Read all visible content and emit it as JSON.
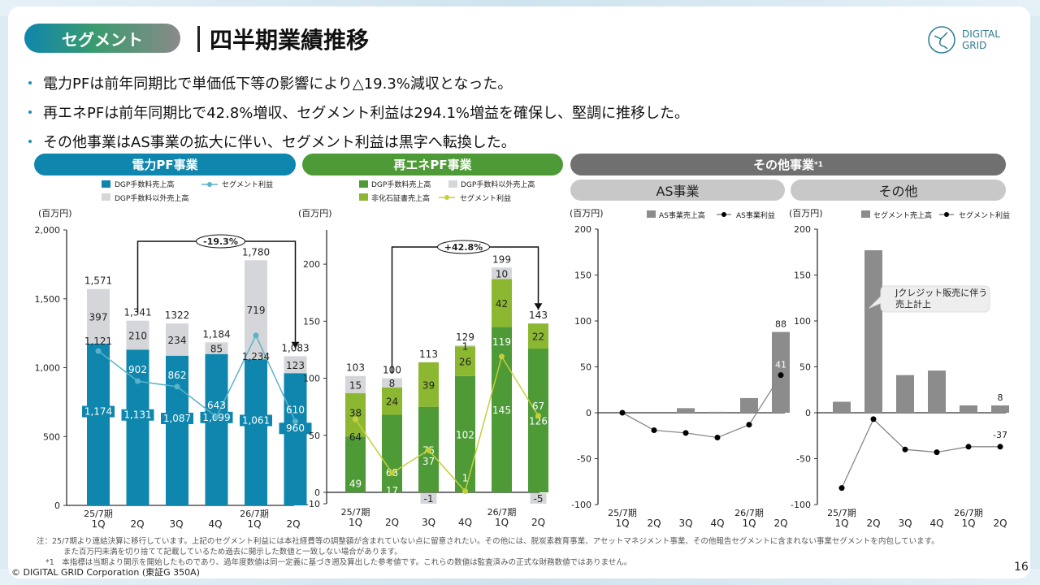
{
  "header": {
    "section_pill": "セグメント",
    "title": "四半期業績推移",
    "logo_line1": "DIGITAL",
    "logo_line2": "GRID"
  },
  "bullets": [
    "電力PFは前年同期比で単価低下等の影響により△19.3%減収となった。",
    "再エネPFは前年同期比で42.8%増収、セグメント利益は294.1%増益を確保し、堅調に推移した。",
    "その他事業はAS事業の拡大に伴い、セグメント利益は黒字へ転換した。"
  ],
  "colors": {
    "power_blue": "#0f86ad",
    "power_gray": "#d5d6d9",
    "power_line": "#5ab3c8",
    "renew_dark": "#4e9a37",
    "renew_light": "#8cb831",
    "renew_line": "#c5cf3c",
    "other_bar": "#8c8c8c",
    "other_hdr": "#707070"
  },
  "segments": {
    "power": "電力PF事業",
    "renew": "再エネPF事業",
    "other": "その他事業",
    "other_sup": "*1",
    "as": "AS事業",
    "misc": "その他"
  },
  "chart_data": [
    {
      "type": "bar",
      "title": "電力PF事業",
      "unit": "(百万円)",
      "categories": [
        "1Q",
        "2Q",
        "3Q",
        "4Q",
        "1Q",
        "2Q"
      ],
      "period_labels": [
        "25/7期",
        "",
        "",
        "",
        "26/7期",
        ""
      ],
      "ylim": [
        0,
        2000
      ],
      "yticks": [
        0,
        500,
        1000,
        1500,
        2000
      ],
      "ytick_labels": [
        "0",
        "500",
        "1,000",
        "1,500",
        "2,000"
      ],
      "legend": [
        "DGP手数料売上高",
        "DGP手数料以外売上高",
        "セグメント利益"
      ],
      "series": [
        {
          "name": "DGP手数料売上高",
          "values": [
            1174,
            1131,
            1087,
            1099,
            1061,
            960
          ],
          "labels": [
            "1,174",
            "1,131",
            "1,087",
            "1,099",
            "1,061",
            "960"
          ]
        },
        {
          "name": "DGP手数料以外売上高",
          "values": [
            397,
            210,
            234,
            85,
            719,
            123
          ],
          "labels": [
            "397",
            "210",
            "234",
            "85",
            "719",
            "123"
          ]
        },
        {
          "name": "セグメント利益",
          "values": [
            1121,
            902,
            862,
            643,
            1234,
            610
          ],
          "labels": [
            "1,121",
            "902",
            "862",
            "643",
            "1,234",
            "610"
          ]
        }
      ],
      "totals": [
        "1,571",
        "1,341",
        "1322",
        "1,184",
        "1,780",
        "1,083"
      ],
      "annotation": {
        "text": "-19.3%",
        "from": 1,
        "to": 5
      }
    },
    {
      "type": "bar",
      "title": "再エネPF事業",
      "unit": "(百万円)",
      "categories": [
        "1Q",
        "2Q",
        "3Q",
        "4Q",
        "1Q",
        "2Q"
      ],
      "period_labels": [
        "25/7期",
        "",
        "",
        "",
        "26/7期",
        ""
      ],
      "ylim": [
        -10,
        230
      ],
      "yticks": [
        -10,
        0,
        50,
        100,
        150,
        200
      ],
      "ytick_labels": [
        "-10",
        "0",
        "50",
        "100",
        "150",
        "200"
      ],
      "legend": [
        "DGP手数料売上高",
        "DGP手数料以外売上高",
        "非化石証書売上高",
        "セグメント利益"
      ],
      "series": [
        {
          "name": "DGP手数料売上高",
          "values": [
            49,
            68,
            75,
            102,
            145,
            126
          ]
        },
        {
          "name": "非化石証書売上高",
          "values": [
            38,
            24,
            39,
            26,
            42,
            22
          ]
        },
        {
          "name": "DGP手数料以外売上高",
          "values": [
            15,
            8,
            -1,
            1,
            10,
            -5
          ]
        },
        {
          "name": "セグメント利益",
          "values": [
            64,
            17,
            37,
            1,
            119,
            67
          ]
        }
      ],
      "totals": [
        "103",
        "100",
        "113",
        "129",
        "199",
        "143"
      ],
      "annotation": {
        "text": "+42.8%",
        "from": 1,
        "to": 5
      }
    },
    {
      "type": "bar",
      "title": "AS事業",
      "unit": "(百万円)",
      "categories": [
        "1Q",
        "2Q",
        "3Q",
        "4Q",
        "1Q",
        "2Q"
      ],
      "period_labels": [
        "25/7期",
        "",
        "",
        "",
        "26/7期",
        ""
      ],
      "ylim": [
        -100,
        200
      ],
      "yticks": [
        -100,
        -50,
        0,
        50,
        100,
        150,
        200
      ],
      "legend": [
        "AS事業売上高",
        "AS事業利益"
      ],
      "series": [
        {
          "name": "AS事業売上高",
          "values": [
            0,
            0,
            5,
            1,
            16,
            88
          ]
        },
        {
          "name": "AS事業利益",
          "values": [
            0,
            -19,
            -22,
            -27,
            -13,
            41
          ]
        }
      ],
      "labels": {
        "bar_last": "88",
        "line_last": "41"
      }
    },
    {
      "type": "bar",
      "title": "その他",
      "unit": "(百万円)",
      "categories": [
        "1Q",
        "2Q",
        "3Q",
        "4Q",
        "1Q",
        "2Q"
      ],
      "period_labels": [
        "25/7期",
        "",
        "",
        "",
        "26/7期",
        ""
      ],
      "ylim": [
        -100,
        200
      ],
      "yticks": [
        -100,
        -50,
        0,
        50,
        100,
        150,
        200
      ],
      "legend": [
        "セグメント売上高",
        "セグメント利益"
      ],
      "series": [
        {
          "name": "セグメント売上高",
          "values": [
            12,
            177,
            41,
            46,
            8,
            8
          ]
        },
        {
          "name": "セグメント利益",
          "values": [
            -82,
            -7,
            -40,
            -43,
            -37,
            -37
          ]
        }
      ],
      "labels": {
        "bar_last": "8",
        "line_last": "-37"
      },
      "callout": [
        "Jクレジット販売に伴う",
        "売上計上"
      ]
    }
  ],
  "notes": [
    "注：25/7期より連結決算に移行しています。上記のセグメント利益には本社経費等の調整額が含まれていない点に留意されたい。その他には、脱炭素教育事業、アセットマネジメント事業、その他報告セグメントに含まれない事業セグメントを内包しています。",
    "また百万円未満を切り捨てて記載しているため過去に開示した数値と一致しない場合があります。",
    "*1　本指標は当期より開示を開始したものであり、過年度数値は同一定義に基づき遡及算出した参考値です。これらの数値は監査済みの正式な財務数値ではありません。"
  ],
  "footer": {
    "copyright": "© DIGITAL GRID Corporation (東証G 350A)",
    "page": "16"
  }
}
